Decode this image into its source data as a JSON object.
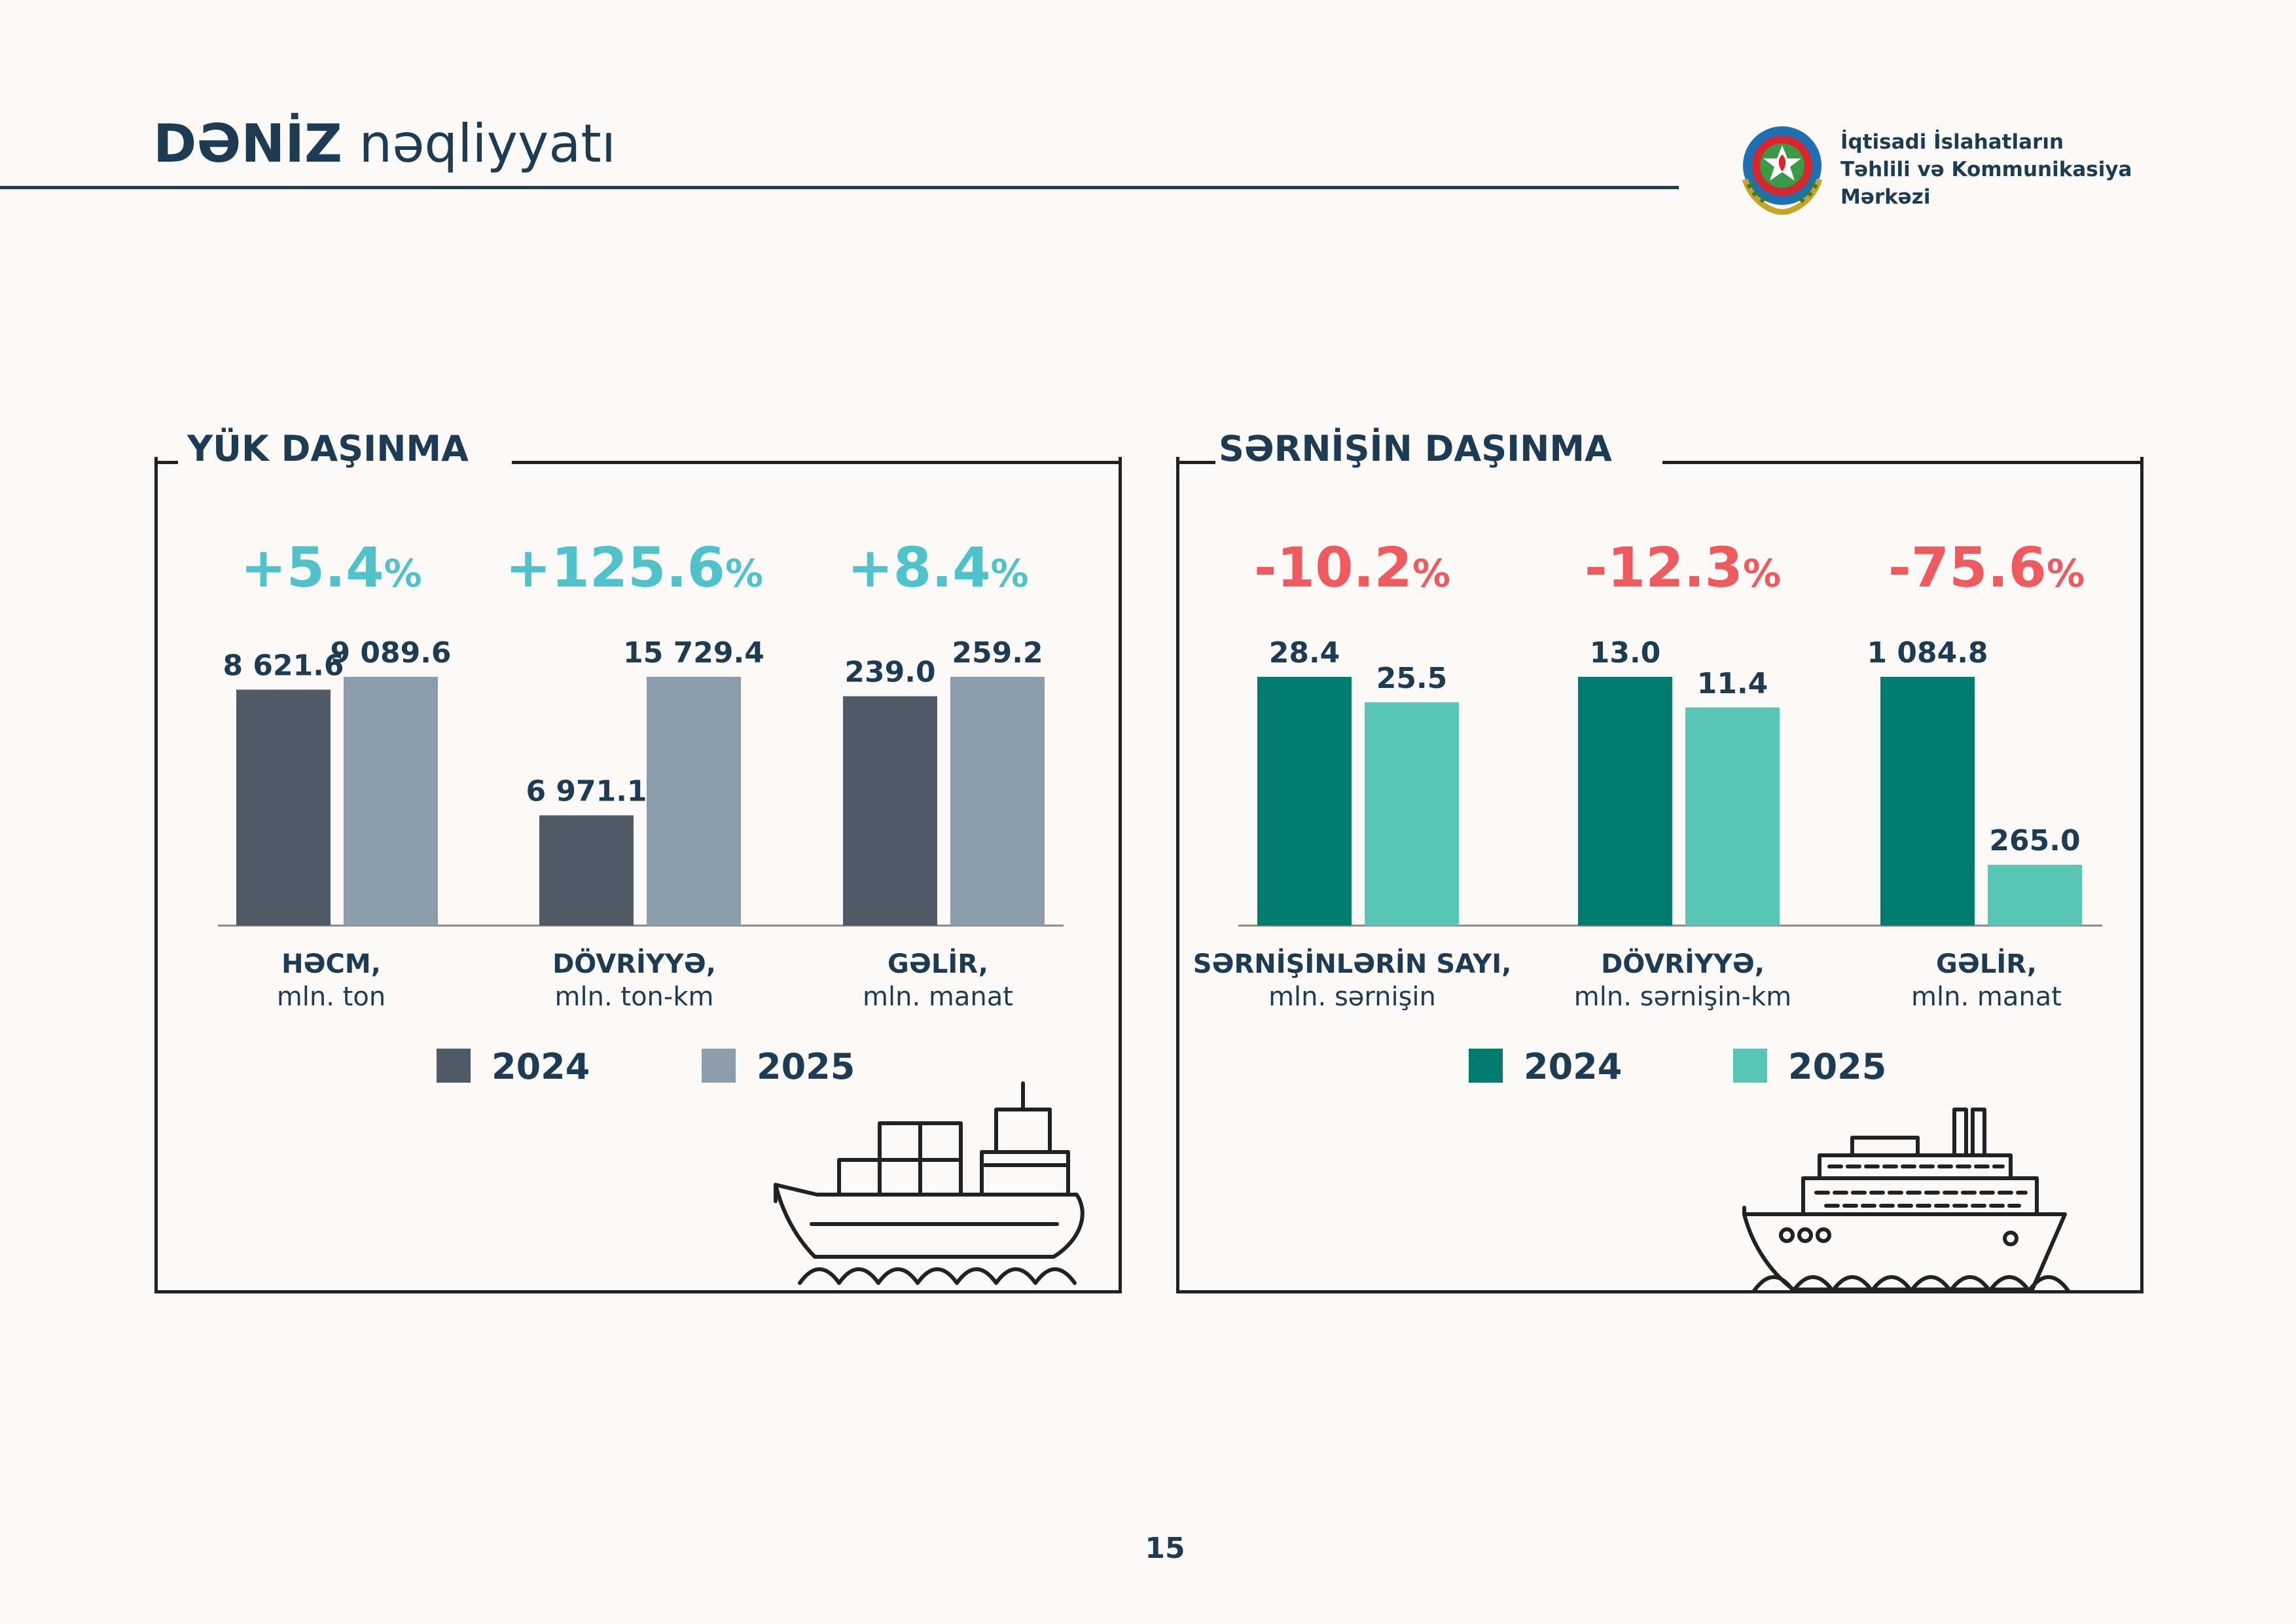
{
  "header": {
    "title_bold": "DƏNİZ",
    "title_rest": "nəqliyyatı",
    "org_line1": "İqtisadi İslahatların",
    "org_line2": "Təhlili və Kommunikasiya",
    "org_line3": "Mərkəzi"
  },
  "colors": {
    "text": "#1d3b52",
    "cargo_2024": "#4f5b66",
    "cargo_2025": "#8b9cab",
    "pass_2024": "#007c6f",
    "pass_2025": "#58c5b5",
    "growth": "#4fc3c9",
    "decline": "#ee5a5e"
  },
  "page_number": "15",
  "chart_data": [
    {
      "type": "bar",
      "title": "YÜK DAŞINMA",
      "series_names": [
        "2024",
        "2025"
      ],
      "legend": "bottom",
      "groups": [
        {
          "label_bold": "HƏCM,",
          "label_unit": "mln. ton",
          "change": "+5.4",
          "values": [
            8621.6,
            9089.6
          ],
          "labels": [
            "8 621.6",
            "9 089.6"
          ]
        },
        {
          "label_bold": "DÖVRİYYƏ,",
          "label_unit": "mln. ton-km",
          "change": "+125.6",
          "values": [
            6971.1,
            15729.4
          ],
          "labels": [
            "6 971.1",
            "15 729.4"
          ]
        },
        {
          "label_bold": "GƏLİR,",
          "label_unit": "mln. manat",
          "change": "+8.4",
          "values": [
            239.0,
            259.2
          ],
          "labels": [
            "239.0",
            "259.2"
          ]
        }
      ]
    },
    {
      "type": "bar",
      "title": "SƏRNİŞİN DAŞINMA",
      "series_names": [
        "2024",
        "2025"
      ],
      "legend": "bottom",
      "groups": [
        {
          "label_bold": "SƏRNİŞİNLƏRİN SAYI,",
          "label_unit": "mln. sərnişin",
          "change": "-10.2",
          "values": [
            28.4,
            25.5
          ],
          "labels": [
            "28.4",
            "25.5"
          ]
        },
        {
          "label_bold": "DÖVRİYYƏ,",
          "label_unit": "mln. sərnişin-km",
          "change": "-12.3",
          "values": [
            13.0,
            11.4
          ],
          "labels": [
            "13.0",
            "11.4"
          ]
        },
        {
          "label_bold": "GƏLİR,",
          "label_unit": "mln. manat",
          "change": "-75.6",
          "values": [
            1084.8,
            265.0
          ],
          "labels": [
            "1 084.8",
            "265.0"
          ]
        }
      ]
    }
  ]
}
